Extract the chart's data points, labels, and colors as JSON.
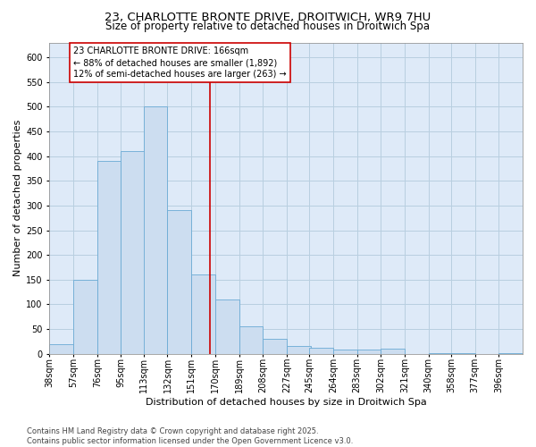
{
  "title_line1": "23, CHARLOTTE BRONTE DRIVE, DROITWICH, WR9 7HU",
  "title_line2": "Size of property relative to detached houses in Droitwich Spa",
  "xlabel": "Distribution of detached houses by size in Droitwich Spa",
  "ylabel": "Number of detached properties",
  "bar_color": "#ccddf0",
  "bar_edge_color": "#6aaad4",
  "grid_color": "#b8cfe0",
  "bg_color": "#deeaf8",
  "annotation_text_line1": "23 CHARLOTTE BRONTE DRIVE: 166sqm",
  "annotation_text_line2": "← 88% of detached houses are smaller (1,892)",
  "annotation_text_line3": "12% of semi-detached houses are larger (263) →",
  "vline_x": 166,
  "vline_color": "#cc0000",
  "bins": [
    38,
    57,
    76,
    95,
    113,
    132,
    151,
    170,
    189,
    208,
    227,
    245,
    264,
    283,
    302,
    321,
    340,
    358,
    377,
    396,
    415
  ],
  "counts": [
    20,
    150,
    390,
    410,
    500,
    290,
    160,
    110,
    55,
    30,
    15,
    12,
    8,
    8,
    10,
    0,
    2,
    2,
    0,
    2
  ],
  "ylim": [
    0,
    630
  ],
  "yticks": [
    0,
    50,
    100,
    150,
    200,
    250,
    300,
    350,
    400,
    450,
    500,
    550,
    600
  ],
  "footnote": "Contains HM Land Registry data © Crown copyright and database right 2025.\nContains public sector information licensed under the Open Government Licence v3.0.",
  "title_fontsize": 9.5,
  "subtitle_fontsize": 8.5,
  "axis_label_fontsize": 8,
  "tick_fontsize": 7,
  "annotation_fontsize": 7,
  "footnote_fontsize": 6
}
